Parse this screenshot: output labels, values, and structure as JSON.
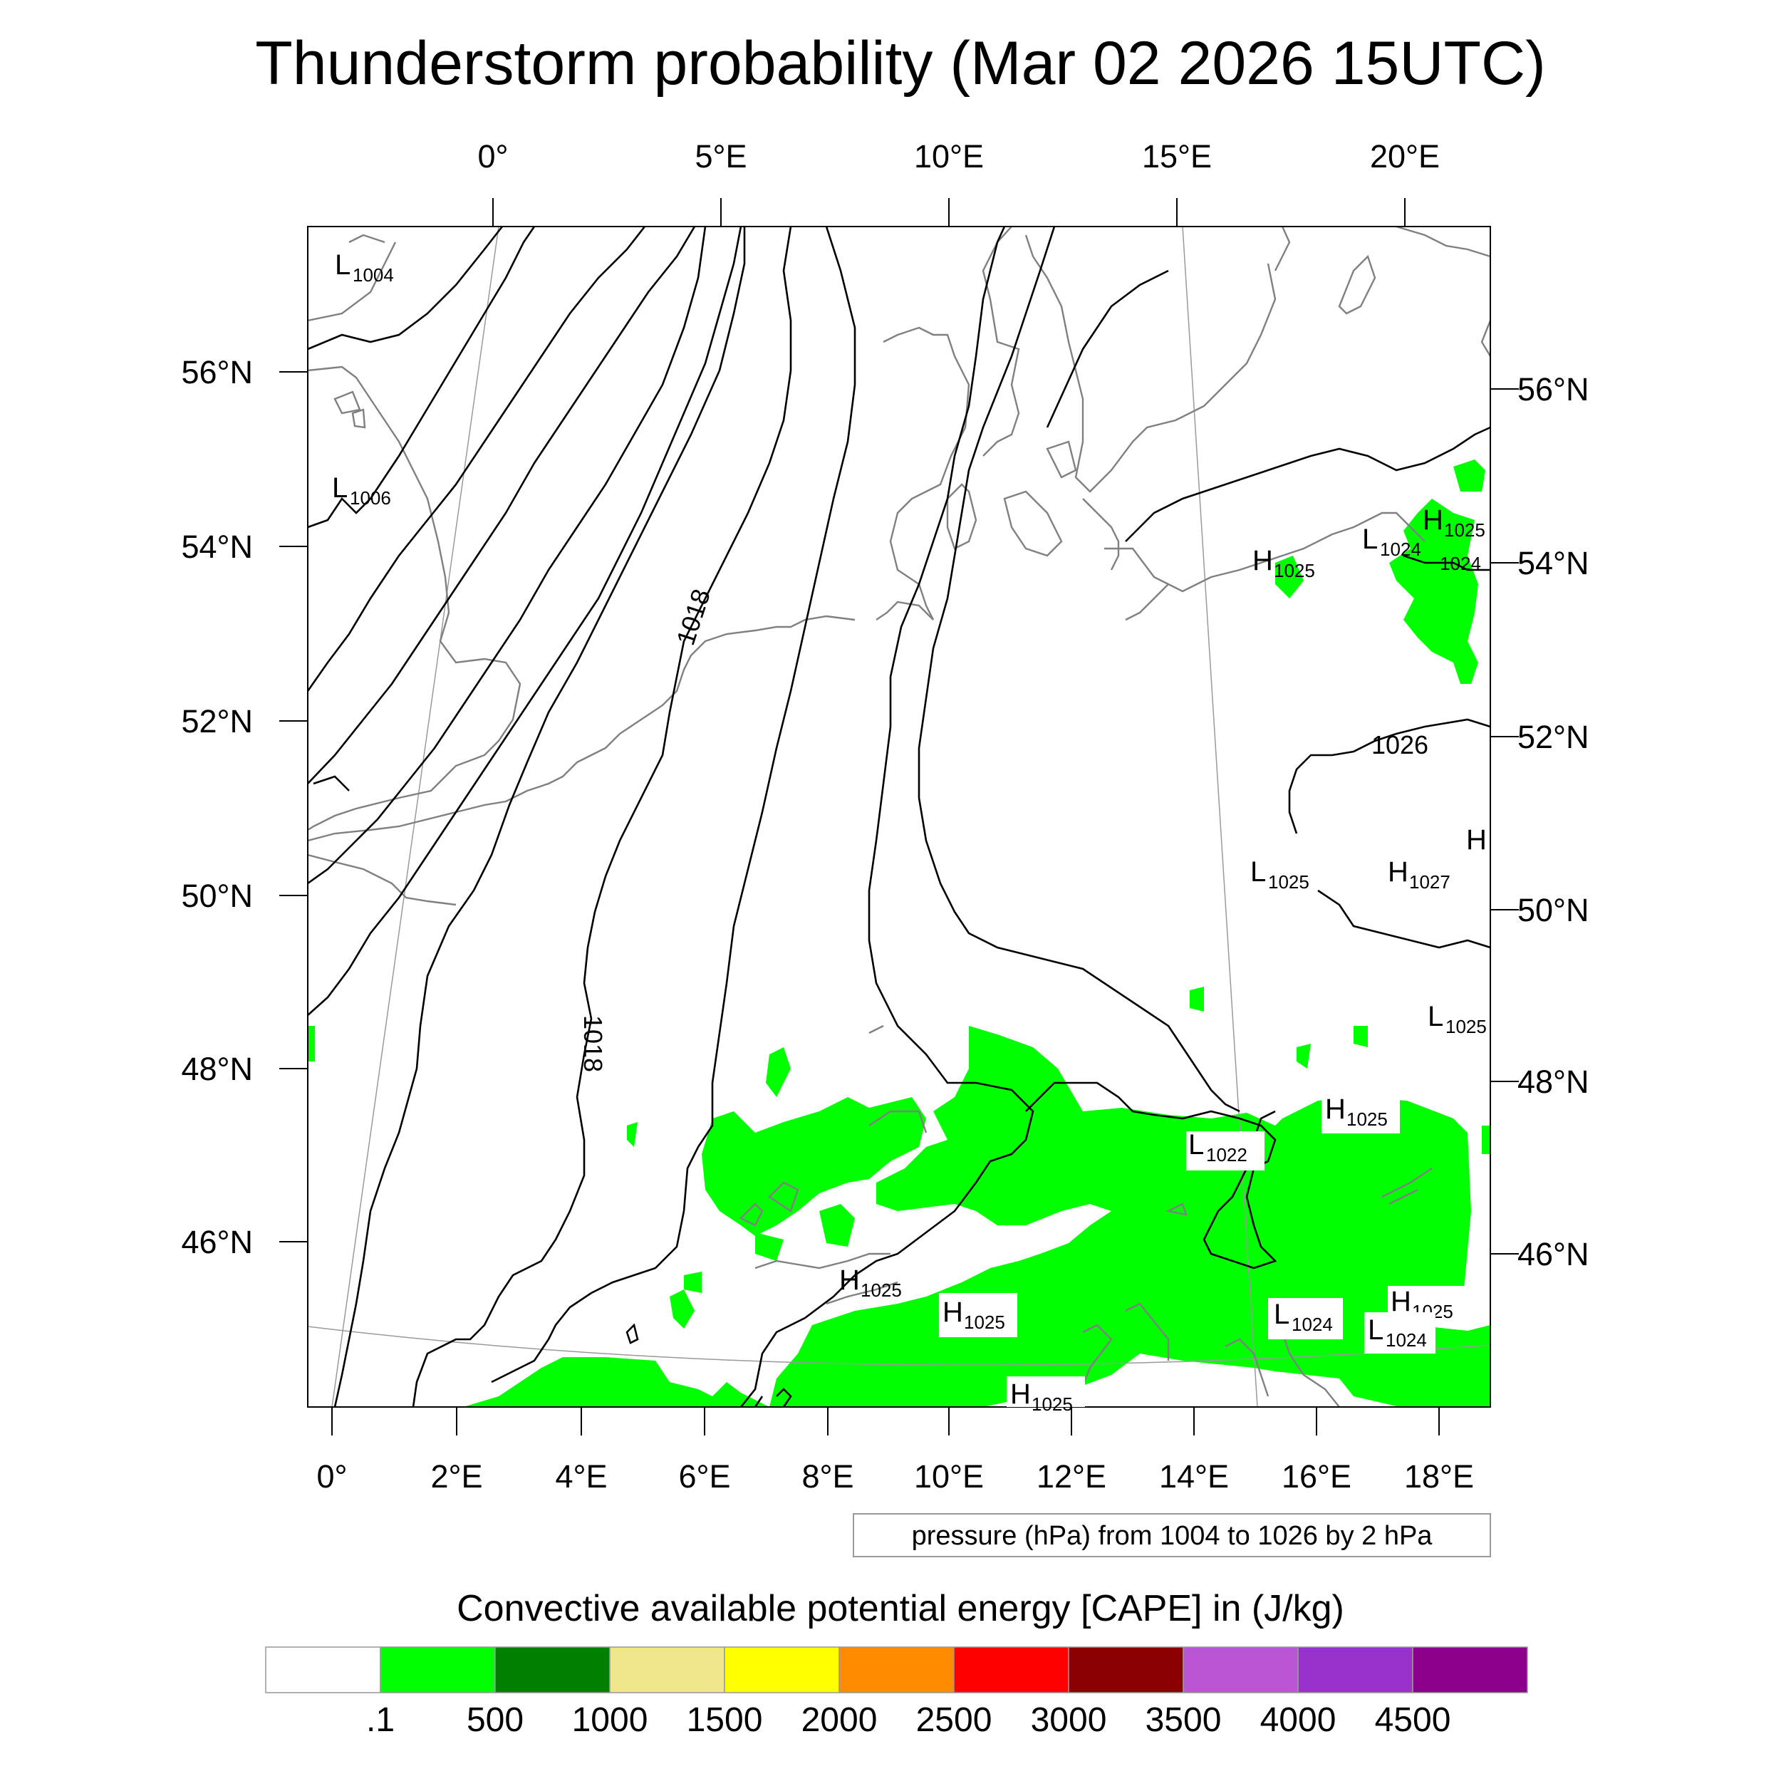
{
  "title": "Thunderstorm probability (Mar 02 2026 15UTC)",
  "top_lon_labels": [
    "0°",
    "5°E",
    "10°E",
    "15°E",
    "20°E"
  ],
  "bottom_lon_labels": [
    "0°",
    "2°E",
    "4°E",
    "6°E",
    "8°E",
    "10°E",
    "12°E",
    "14°E",
    "16°E",
    "18°E"
  ],
  "left_lat_labels": [
    "56°N",
    "54°N",
    "52°N",
    "50°N",
    "48°N",
    "46°N"
  ],
  "right_lat_labels": [
    "56°N",
    "54°N",
    "52°N",
    "50°N",
    "48°N",
    "46°N"
  ],
  "isobar_labels": [
    "1018",
    "1018",
    "1026",
    "1024"
  ],
  "pressure_centers": [
    {
      "letter": "L",
      "value": "1004"
    },
    {
      "letter": "L",
      "value": "1006"
    },
    {
      "letter": "H",
      "value": "1025"
    },
    {
      "letter": "L",
      "value": "1024"
    },
    {
      "letter": "H",
      "value": "1025"
    },
    {
      "letter": "L",
      "value": "1025"
    },
    {
      "letter": "H",
      "value": "1027"
    },
    {
      "letter": "H",
      "value": ""
    },
    {
      "letter": "L",
      "value": "1025"
    },
    {
      "letter": "H",
      "value": "1025"
    },
    {
      "letter": "L",
      "value": "1022"
    },
    {
      "letter": "H",
      "value": "1025"
    },
    {
      "letter": "H",
      "value": "1025"
    },
    {
      "letter": "L",
      "value": "1024"
    },
    {
      "letter": "H",
      "value": "1025"
    },
    {
      "letter": "L",
      "value": "1024"
    },
    {
      "letter": "H",
      "value": "1025"
    }
  ],
  "contour_info": "pressure (hPa) from 1004 to 1026 by 2 hPa",
  "colorbar": {
    "title": "Convective available potential energy [CAPE] in (J/kg)",
    "colors": [
      "#ffffff",
      "#00ff00",
      "#007f00",
      "#f0e68c",
      "#ffff00",
      "#ff8c00",
      "#ff0000",
      "#8b0000",
      "#ba55d3",
      "#9932cc",
      "#8b008b"
    ],
    "labels": [
      ".1",
      "500",
      "1000",
      "1500",
      "2000",
      "2500",
      "3000",
      "3500",
      "4000",
      "4500"
    ]
  }
}
